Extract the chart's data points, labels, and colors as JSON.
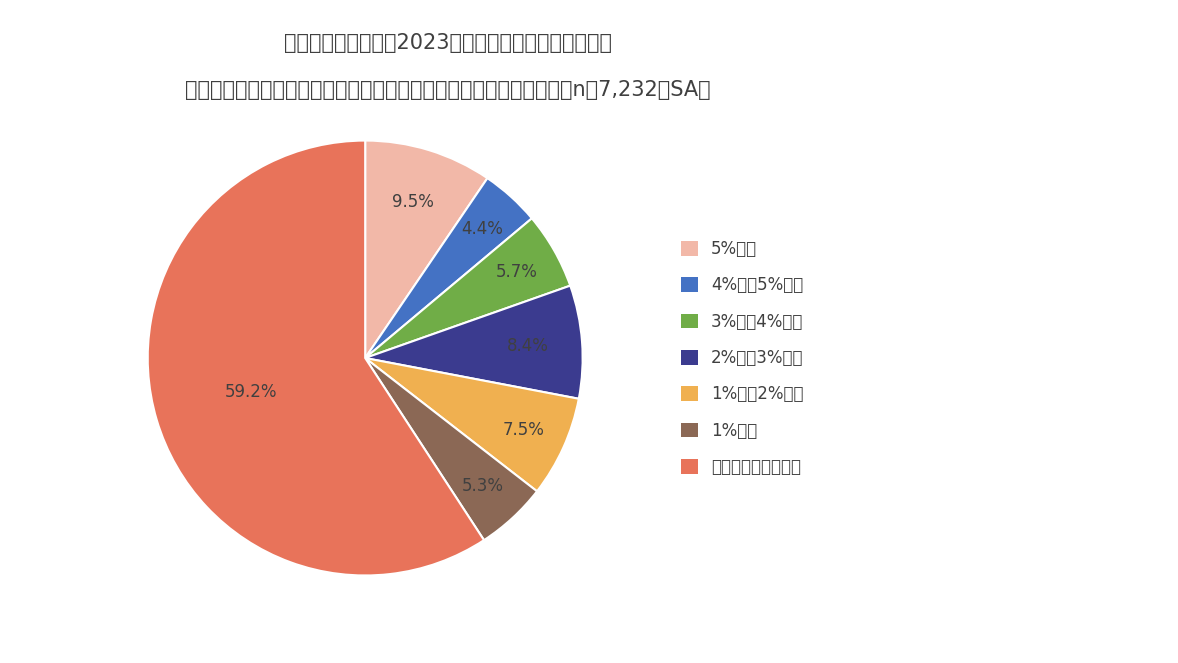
{
  "title_line1": "あなたの会社では、2023年度に賃上げをしましたか。",
  "title_line2": "賃上げをした場合、どの程度の賃上げだったのかをお答えください（n＝7,232、SA）",
  "labels": [
    "5%以上",
    "4%以上5%未満",
    "3%以上4%未満",
    "2%以上3%未満",
    "1%以上2%未満",
    "1%未満",
    "賃上げをしていない"
  ],
  "values": [
    9.5,
    4.4,
    5.7,
    8.4,
    7.5,
    5.3,
    59.2
  ],
  "colors": [
    "#F2B8A8",
    "#4472C4",
    "#70AD47",
    "#3B3B8F",
    "#F0B050",
    "#8B6855",
    "#E8735A"
  ],
  "background_color": "#FFFFFF",
  "text_color": "#404040",
  "title_fontsize": 15,
  "legend_fontsize": 12,
  "label_fontsize": 12,
  "startangle": 90
}
